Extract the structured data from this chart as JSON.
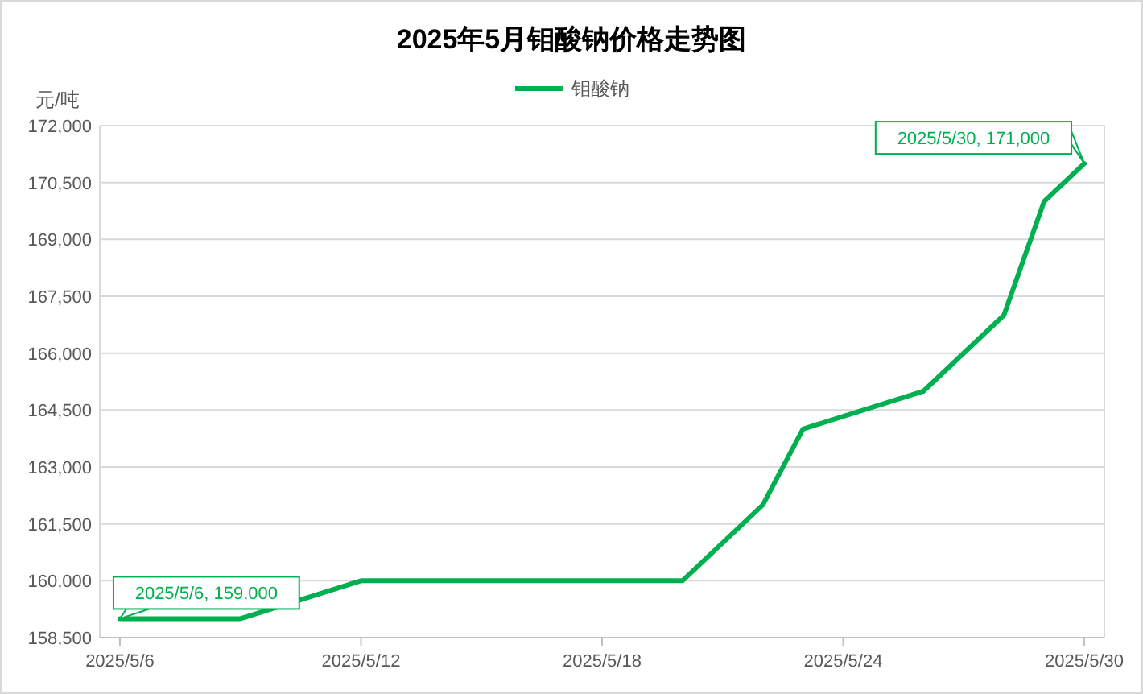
{
  "chart_data": {
    "type": "line",
    "title": "2025年5月钼酸钠价格走势图",
    "ylabel": "元/吨",
    "x": [
      "2025-05-06",
      "2025-05-09",
      "2025-05-12",
      "2025-05-20",
      "2025-05-22",
      "2025-05-23",
      "2025-05-26",
      "2025-05-28",
      "2025-05-29",
      "2025-05-30"
    ],
    "series": [
      {
        "name": "钼酸钠",
        "color": "#00b050",
        "values": [
          159000,
          159000,
          160000,
          160000,
          162000,
          164000,
          165000,
          167000,
          170000,
          171000
        ]
      }
    ],
    "xlim": [
      "2025-05-05T12:00",
      "2025-05-30T12:00"
    ],
    "xticks": [
      {
        "value": "2025-05-06",
        "label": "2025/5/6"
      },
      {
        "value": "2025-05-12",
        "label": "2025/5/12"
      },
      {
        "value": "2025-05-18",
        "label": "2025/5/18"
      },
      {
        "value": "2025-05-24",
        "label": "2025/5/24"
      },
      {
        "value": "2025-05-30",
        "label": "2025/5/30"
      }
    ],
    "ylim": [
      158500,
      172000
    ],
    "yticks": [
      {
        "value": 158500,
        "label": "158,500"
      },
      {
        "value": 160000,
        "label": "160,000"
      },
      {
        "value": 161500,
        "label": "161,500"
      },
      {
        "value": 163000,
        "label": "163,000"
      },
      {
        "value": 164500,
        "label": "164,500"
      },
      {
        "value": 166000,
        "label": "166,000"
      },
      {
        "value": 167500,
        "label": "167,500"
      },
      {
        "value": 169000,
        "label": "169,000"
      },
      {
        "value": 170500,
        "label": "170,500"
      },
      {
        "value": 172000,
        "label": "172,000"
      }
    ],
    "annotations": [
      {
        "text": "2025/5/6, 159,000",
        "x": "2025-05-06",
        "y": 159000
      },
      {
        "text": "2025/5/30, 171,000",
        "x": "2025-05-30",
        "y": 171000
      }
    ],
    "grid": "y",
    "legend": "top",
    "marker": "none",
    "line_style": "solid"
  }
}
